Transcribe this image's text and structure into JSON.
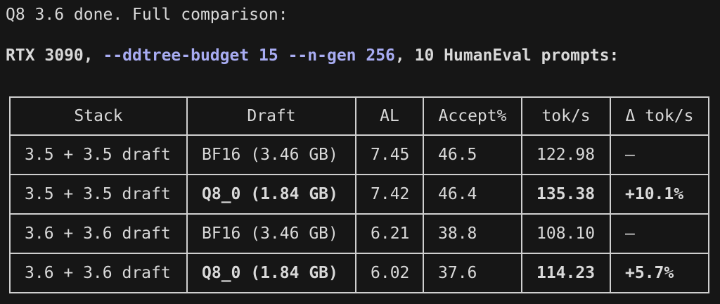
{
  "lines": [
    "Q8 3.6 done. Full comparison:"
  ],
  "heading": {
    "prefix": "RTX 3090, ",
    "code": "--ddtree-budget 15 --n-gen 256",
    "suffix": ", 10 HumanEval prompts:"
  },
  "table": {
    "header": [
      "Stack",
      "Draft",
      "AL",
      "Accept%",
      "tok/s",
      "Δ tok/s"
    ],
    "rows": [
      [
        "3.5 + 3.5 draft",
        "BF16 (3.46 GB)",
        "7.45",
        "46.5",
        "122.98",
        "—"
      ],
      [
        "3.5 + 3.5 draft",
        "Q8_0 (1.84 GB)",
        "7.42",
        "46.4",
        "135.38",
        "+10.1%"
      ],
      [
        "3.6 + 3.6 draft",
        "BF16 (3.46 GB)",
        "6.21",
        "38.8",
        "108.10",
        "—"
      ],
      [
        "3.6 + 3.6 draft",
        "Q8_0 (1.84 GB)",
        "6.02",
        "37.6",
        "114.23",
        "+5.7%"
      ]
    ]
  }
}
